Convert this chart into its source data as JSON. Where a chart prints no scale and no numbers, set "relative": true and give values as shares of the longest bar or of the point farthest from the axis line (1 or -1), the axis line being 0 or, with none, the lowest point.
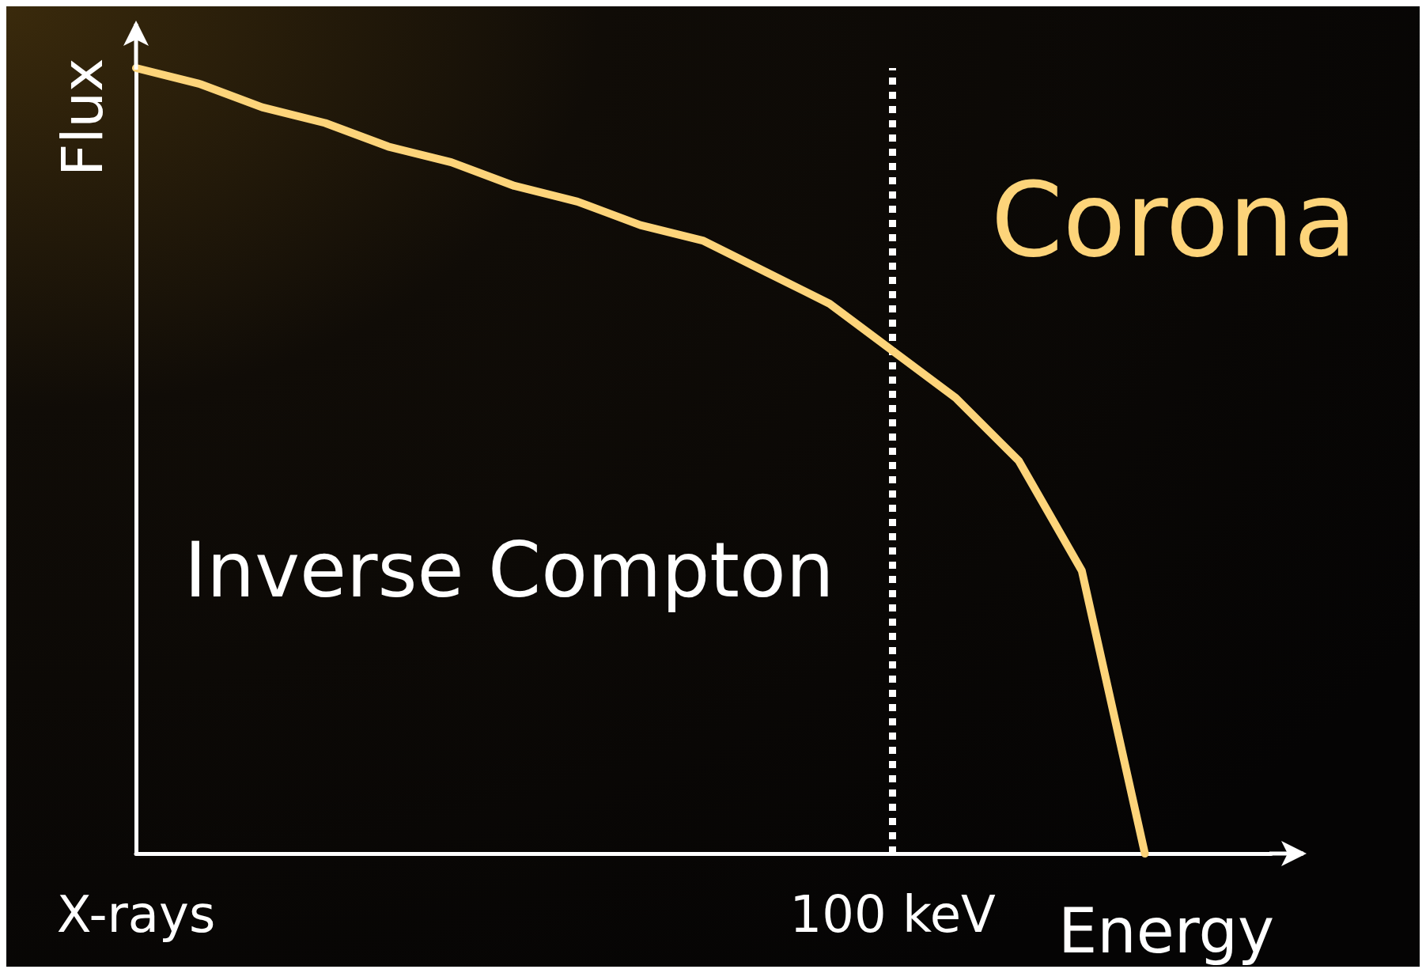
{
  "chart_data": {
    "type": "line",
    "relative": true,
    "xlabel": "Energy",
    "ylabel": "Flux",
    "categories": [
      "X-rays",
      null,
      null,
      null,
      null,
      null,
      null,
      null,
      null,
      null,
      null,
      null,
      "100 keV",
      null,
      null,
      null,
      null,
      null,
      null
    ],
    "series": [
      {
        "name": "Corona",
        "color": "#fdd47a",
        "values": [
          1,
          0.98,
          0.95,
          0.93,
          0.9,
          0.88,
          0.85,
          0.83,
          0.8,
          0.78,
          0.74,
          0.7,
          0.64,
          0.58,
          0.5,
          0.36,
          0,
          null,
          null
        ]
      }
    ],
    "ref_lines": [
      {
        "axis": "x",
        "value": "100 keV",
        "color": "#ffffff",
        "line_style": "dotted"
      }
    ],
    "annotations": [
      "Inverse Compton"
    ],
    "marker": "none",
    "grid": false,
    "legend": false
  }
}
